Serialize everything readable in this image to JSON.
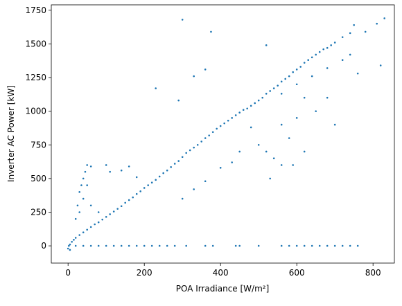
{
  "chart_data": {
    "type": "scatter",
    "x_label": "POA Irradiance [W/m²]",
    "y_label": "Inverter AC Power [kW]",
    "color": "#1f77b4",
    "xlim": [
      -44,
      856
    ],
    "ylim": [
      -128,
      1790
    ],
    "xticks": [
      0,
      200,
      400,
      600,
      800
    ],
    "yticks": [
      0,
      250,
      500,
      750,
      1000,
      1250,
      1500,
      1750
    ],
    "x": [
      2,
      5,
      10,
      15,
      20,
      30,
      40,
      50,
      60,
      70,
      80,
      90,
      100,
      110,
      120,
      130,
      140,
      150,
      160,
      170,
      180,
      190,
      200,
      210,
      220,
      230,
      240,
      250,
      260,
      270,
      280,
      290,
      300,
      310,
      320,
      330,
      340,
      350,
      360,
      370,
      380,
      390,
      400,
      410,
      420,
      430,
      440,
      450,
      460,
      470,
      480,
      490,
      500,
      510,
      520,
      530,
      540,
      550,
      560,
      570,
      580,
      590,
      600,
      610,
      620,
      630,
      640,
      650,
      660,
      670,
      680,
      690,
      700,
      720,
      740,
      560,
      600,
      640,
      680,
      720,
      740,
      520,
      540,
      560,
      580,
      600,
      620,
      650,
      560,
      530,
      480,
      450,
      430,
      400,
      360,
      330,
      300,
      500,
      590,
      620,
      680,
      700,
      760,
      300,
      375,
      520,
      230,
      330,
      360,
      290,
      810,
      830,
      780,
      750,
      820,
      20,
      25,
      30,
      35,
      40,
      45,
      50,
      30,
      40,
      50,
      60,
      80,
      100,
      110,
      140,
      160,
      180,
      60,
      0,
      5,
      20,
      40,
      60,
      80,
      100,
      120,
      140,
      160,
      180,
      200,
      220,
      240,
      260,
      280,
      310,
      360,
      380,
      440,
      450,
      500,
      560,
      580,
      600,
      620,
      640,
      660,
      680,
      700,
      720,
      740,
      760
    ],
    "values": [
      0,
      10,
      30,
      45,
      60,
      80,
      100,
      120,
      140,
      160,
      175,
      195,
      215,
      235,
      255,
      275,
      295,
      320,
      340,
      360,
      385,
      405,
      430,
      450,
      470,
      490,
      515,
      540,
      560,
      585,
      610,
      630,
      660,
      690,
      710,
      730,
      750,
      775,
      800,
      820,
      845,
      870,
      890,
      910,
      930,
      950,
      970,
      990,
      1010,
      1020,
      1040,
      1060,
      1080,
      1100,
      1130,
      1150,
      1170,
      1190,
      1220,
      1240,
      1260,
      1290,
      1310,
      1330,
      1360,
      1380,
      1400,
      1420,
      1440,
      1460,
      1470,
      1490,
      1510,
      1550,
      1580,
      1130,
      1200,
      1260,
      1320,
      1380,
      1420,
      700,
      650,
      900,
      800,
      950,
      700,
      1000,
      600,
      500,
      880,
      700,
      620,
      580,
      480,
      420,
      350,
      750,
      600,
      1100,
      1100,
      900,
      1280,
      1680,
      1590,
      1490,
      1170,
      1260,
      1310,
      1080,
      1650,
      1690,
      1590,
      1640,
      1340,
      200,
      300,
      400,
      450,
      500,
      550,
      600,
      250,
      350,
      450,
      300,
      250,
      600,
      550,
      560,
      590,
      510,
      590,
      -20,
      -30,
      0,
      0,
      0,
      0,
      0,
      0,
      0,
      0,
      0,
      0,
      0,
      0,
      0,
      0,
      0,
      0,
      0,
      0,
      0,
      0,
      0,
      0,
      0,
      0,
      0,
      0,
      0,
      0,
      0,
      0,
      0
    ]
  }
}
